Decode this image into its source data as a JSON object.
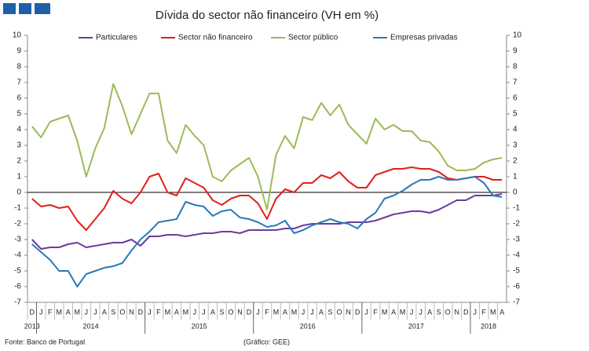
{
  "chart_data": {
    "type": "line",
    "title": "Dívida do sector não financeiro (VH em %)",
    "categories": [
      "D",
      "J",
      "F",
      "M",
      "A",
      "M",
      "J",
      "J",
      "A",
      "S",
      "O",
      "N",
      "D",
      "J",
      "F",
      "M",
      "A",
      "M",
      "J",
      "J",
      "A",
      "S",
      "O",
      "N",
      "D",
      "J",
      "F",
      "M",
      "A",
      "M",
      "J",
      "J",
      "A",
      "S",
      "O",
      "N",
      "D",
      "J",
      "F",
      "M",
      "A",
      "M",
      "J",
      "J",
      "A",
      "S",
      "O",
      "N",
      "D",
      "J",
      "F",
      "M",
      "A"
    ],
    "years": [
      "2013",
      "2014",
      "2015",
      "2016",
      "2017",
      "2018"
    ],
    "series": [
      {
        "name": "Particulares",
        "color": "#6a3d9a",
        "values": [
          -3.0,
          -3.6,
          -3.5,
          -3.5,
          -3.3,
          -3.2,
          -3.5,
          -3.4,
          -3.3,
          -3.2,
          -3.2,
          -3.0,
          -3.4,
          -2.8,
          -2.8,
          -2.7,
          -2.7,
          -2.8,
          -2.7,
          -2.6,
          -2.6,
          -2.5,
          -2.5,
          -2.6,
          -2.4,
          -2.4,
          -2.4,
          -2.4,
          -2.3,
          -2.3,
          -2.1,
          -2.0,
          -2.0,
          -2.0,
          -2.0,
          -1.9,
          -1.9,
          -1.9,
          -1.8,
          -1.6,
          -1.4,
          -1.3,
          -1.2,
          -1.2,
          -1.3,
          -1.1,
          -0.8,
          -0.5,
          -0.5,
          -0.2,
          -0.2,
          -0.2,
          -0.1
        ]
      },
      {
        "name": "Sector não financeiro",
        "color": "#e0201b",
        "values": [
          -0.4,
          -0.9,
          -0.8,
          -1.0,
          -0.9,
          -1.8,
          -2.4,
          -1.7,
          -1.0,
          0.1,
          -0.4,
          -0.7,
          0.0,
          1.0,
          1.2,
          0.0,
          -0.2,
          0.9,
          0.6,
          0.3,
          -0.5,
          -0.8,
          -0.4,
          -0.2,
          -0.2,
          -0.7,
          -1.7,
          -0.4,
          0.2,
          0.0,
          0.6,
          0.6,
          1.1,
          0.9,
          1.3,
          0.7,
          0.3,
          0.3,
          1.1,
          1.3,
          1.5,
          1.5,
          1.6,
          1.5,
          1.5,
          1.3,
          0.9,
          0.8,
          0.9,
          1.0,
          1.0,
          0.8,
          0.8
        ]
      },
      {
        "name": "Sector público",
        "color": "#9bbb59",
        "values": [
          4.2,
          3.5,
          4.5,
          4.7,
          4.9,
          3.3,
          1.0,
          2.8,
          4.1,
          6.9,
          5.5,
          3.7,
          5.0,
          6.3,
          6.3,
          3.3,
          2.5,
          4.3,
          3.6,
          3.0,
          1.0,
          0.7,
          1.4,
          1.8,
          2.2,
          1.0,
          -1.1,
          2.4,
          3.6,
          2.8,
          4.8,
          4.6,
          5.7,
          4.9,
          5.6,
          4.3,
          3.7,
          3.1,
          4.7,
          4.0,
          4.3,
          3.9,
          3.9,
          3.3,
          3.2,
          2.6,
          1.7,
          1.4,
          1.4,
          1.5,
          1.9,
          2.1,
          2.2
        ]
      },
      {
        "name": "Empresas privadas",
        "color": "#2a7ab8",
        "values": [
          -3.3,
          -3.8,
          -4.3,
          -5.0,
          -5.0,
          -6.0,
          -5.2,
          -5.0,
          -4.8,
          -4.7,
          -4.5,
          -3.7,
          -3.0,
          -2.5,
          -1.9,
          -1.8,
          -1.7,
          -0.6,
          -0.8,
          -0.9,
          -1.5,
          -1.2,
          -1.1,
          -1.6,
          -1.7,
          -1.9,
          -2.2,
          -2.1,
          -1.8,
          -2.6,
          -2.4,
          -2.1,
          -1.9,
          -1.7,
          -1.9,
          -2.0,
          -2.3,
          -1.7,
          -1.3,
          -0.4,
          -0.2,
          0.1,
          0.5,
          0.8,
          0.8,
          1.0,
          0.8,
          0.8,
          0.9,
          1.0,
          0.6,
          -0.2,
          -0.3
        ]
      }
    ],
    "ylim": [
      -7,
      10
    ],
    "yticks": [
      -7,
      -6,
      -5,
      -4,
      -3,
      -2,
      -1,
      0,
      1,
      2,
      3,
      4,
      5,
      6,
      7,
      8,
      9,
      10
    ],
    "y2lim": [
      -7,
      10
    ],
    "y2ticks": [
      -7,
      -6,
      -5,
      -4,
      -3,
      -2,
      -1,
      0,
      1,
      2,
      3,
      4,
      5,
      6,
      7,
      8,
      9,
      10
    ],
    "source": "Fonte: Banco de Portugal",
    "credit": "(Gráfico: GEE)"
  }
}
